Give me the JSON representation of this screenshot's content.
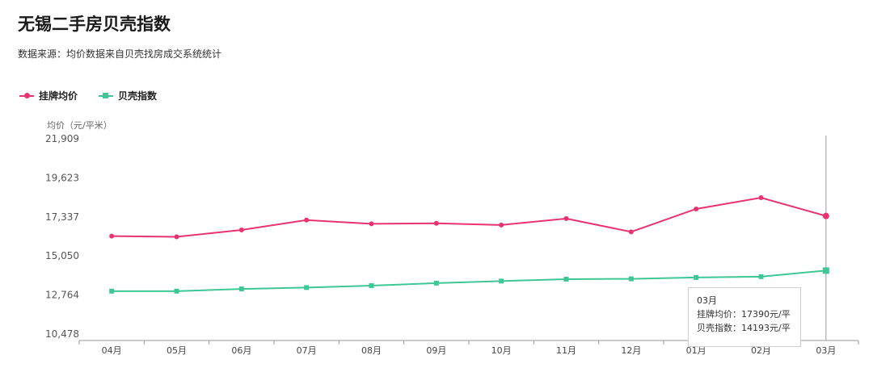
{
  "title": "无锡二手房贝壳指数",
  "subtitle": "数据来源：均价数据来自贝壳找房成交系统统计",
  "colors": {
    "listing": "#e8336e",
    "index": "#3ec795",
    "grid": "#e6e6e6",
    "axis": "#999999"
  },
  "legend": [
    {
      "label": "挂牌均价",
      "color": "#e8336e",
      "marker": "circle"
    },
    {
      "label": "贝壳指数",
      "color": "#3ec795",
      "marker": "square"
    }
  ],
  "chart_data": {
    "type": "line",
    "ylabel": "均价（元/平米）",
    "ylim": [
      10478,
      21909
    ],
    "yticks": [
      "21,909",
      "19,623",
      "17,337",
      "15,050",
      "12,764",
      "10,478"
    ],
    "categories": [
      "04月",
      "05月",
      "06月",
      "07月",
      "08月",
      "09月",
      "10月",
      "11月",
      "12月",
      "01月",
      "02月",
      "03月"
    ],
    "series": [
      {
        "name": "挂牌均价",
        "color": "#e8336e",
        "marker": "circle",
        "values": [
          16210,
          16170,
          16570,
          17150,
          16930,
          16960,
          16860,
          17240,
          16460,
          17800,
          18460,
          17390
        ]
      },
      {
        "name": "贝壳指数",
        "color": "#3ec795",
        "marker": "square",
        "values": [
          12990,
          12990,
          13120,
          13200,
          13310,
          13460,
          13580,
          13690,
          13710,
          13790,
          13840,
          14193
        ]
      }
    ],
    "grid": false,
    "legend_position": "top-left",
    "hover_index": 11
  },
  "tooltip": {
    "month": "03月",
    "listing_text": "挂牌均价：17390元/平",
    "index_text": "贝壳指数：14193元/平"
  }
}
